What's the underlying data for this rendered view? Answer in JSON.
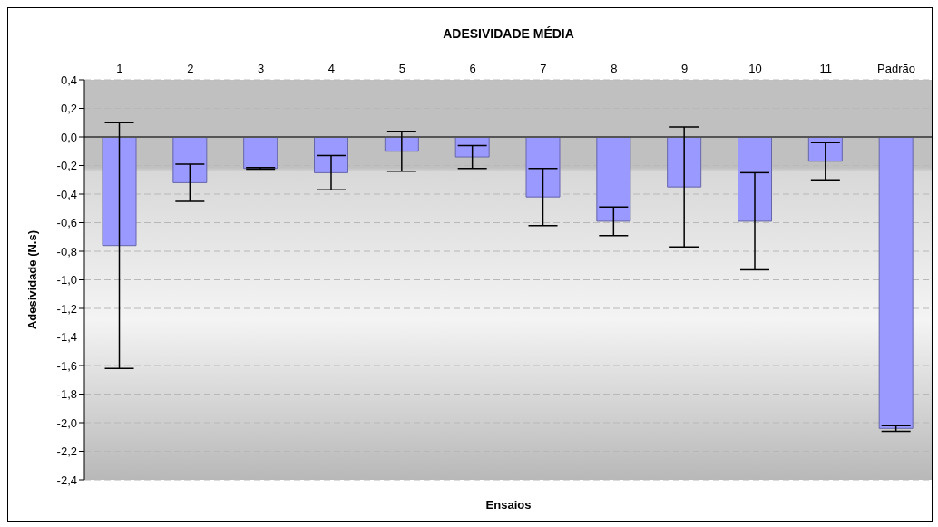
{
  "chart_data": {
    "type": "bar",
    "title": "ADESIVIDADE MÉDIA",
    "xlabel": "Ensaios",
    "ylabel": "Adesividade (N.s)",
    "categories": [
      "1",
      "2",
      "3",
      "4",
      "5",
      "6",
      "7",
      "8",
      "9",
      "10",
      "11",
      "Padrão"
    ],
    "series": [
      {
        "color": "#9999ff",
        "values": [
          -0.76,
          -0.32,
          -0.22,
          -0.25,
          -0.1,
          -0.14,
          -0.42,
          -0.59,
          -0.35,
          -0.59,
          -0.17,
          -2.04
        ],
        "errors": [
          0.86,
          0.13,
          0.005,
          0.12,
          0.14,
          0.08,
          0.2,
          0.1,
          0.42,
          0.34,
          0.13,
          0.02
        ]
      }
    ],
    "ylim": [
      -2.4,
      0.4
    ],
    "yticks": [
      {
        "value": 0.4,
        "label": "0,4"
      },
      {
        "value": 0.2,
        "label": "0,2"
      },
      {
        "value": 0,
        "label": "0,0"
      },
      {
        "value": -0.2,
        "label": "-0,2"
      },
      {
        "value": -0.4,
        "label": "-0,4"
      },
      {
        "value": -0.6,
        "label": "-0,6"
      },
      {
        "value": -0.8,
        "label": "-0,8"
      },
      {
        "value": -1.0,
        "label": "-1,0"
      },
      {
        "value": -1.2,
        "label": "-1,2"
      },
      {
        "value": -1.4,
        "label": "-1,4"
      },
      {
        "value": -1.6,
        "label": "-1,6"
      },
      {
        "value": -1.8,
        "label": "-1,8"
      },
      {
        "value": -2.0,
        "label": "-2,0"
      },
      {
        "value": -2.2,
        "label": "-2,2"
      },
      {
        "value": -2.4,
        "label": "-2,4"
      }
    ],
    "grid": "y",
    "legend": false
  }
}
